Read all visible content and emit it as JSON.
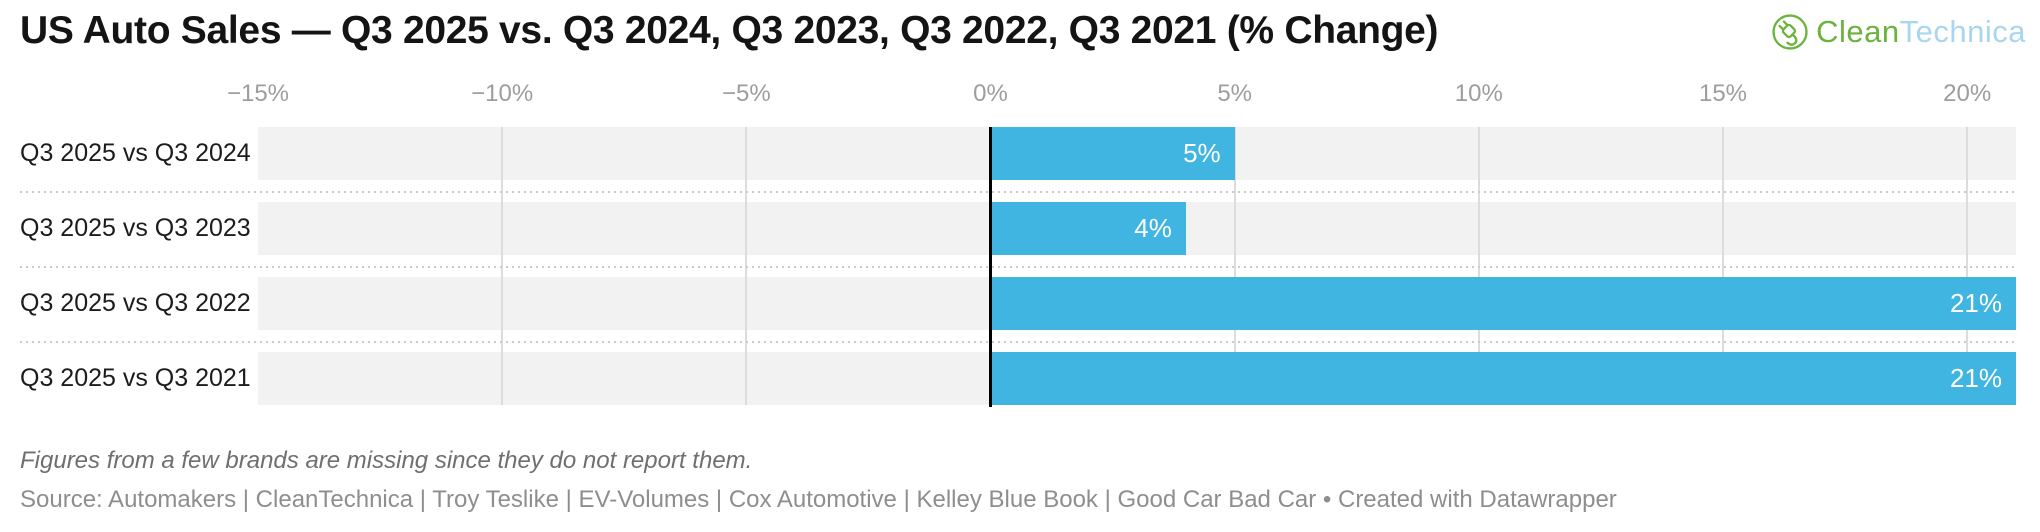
{
  "header": {
    "title": "US Auto Sales — Q3 2025 vs. Q3 2024, Q3 2023, Q3 2022, Q3 2021 (% Change)",
    "logo": {
      "part1": "Clean",
      "part2": "Technica",
      "icon": "plug-circle-icon",
      "green": "#6cb33e",
      "light_blue": "#a9d6ef"
    }
  },
  "chart_data": {
    "type": "bar",
    "orientation": "horizontal",
    "title": "US Auto Sales — Q3 2025 vs. Q3 2024, Q3 2023, Q3 2022, Q3 2021 (% Change)",
    "categories": [
      "Q3 2025 vs Q3 2024",
      "Q3 2025 vs Q3 2023",
      "Q3 2025 vs Q3 2022",
      "Q3 2025 vs Q3 2021"
    ],
    "values": [
      5,
      4,
      21,
      21
    ],
    "value_labels": [
      "5%",
      "4%",
      "21%",
      "21%"
    ],
    "value_label_position": "inside-end",
    "xlim": [
      -15,
      21
    ],
    "ticks": [
      {
        "value": -15,
        "label": "−15%"
      },
      {
        "value": -10,
        "label": "−10%"
      },
      {
        "value": -5,
        "label": "−5%"
      },
      {
        "value": 0,
        "label": "0%"
      },
      {
        "value": 5,
        "label": "5%"
      },
      {
        "value": 10,
        "label": "10%"
      },
      {
        "value": 15,
        "label": "15%"
      },
      {
        "value": 20,
        "label": "20%"
      }
    ],
    "grid": true,
    "legend": "none",
    "bar_color": "#41b5e2",
    "track_color": "#f2f2f2",
    "grid_color": "#dcdcdc",
    "zero_line_color": "#000000",
    "value_label_color": "#ffffff"
  },
  "footer": {
    "footnote": "Figures from a few brands are missing since they do not report them.",
    "source": "Source: Automakers | CleanTechnica | Troy Teslike | EV-Volumes | Cox Automotive | Kelley Blue Book | Good Car Bad Car • Created with Datawrapper"
  }
}
